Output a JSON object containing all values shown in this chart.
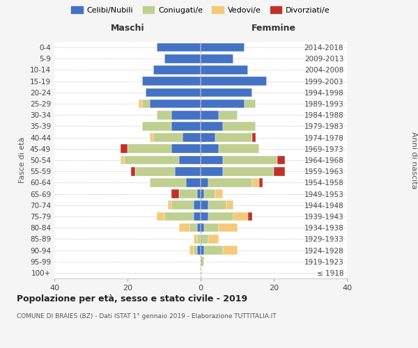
{
  "age_groups": [
    "100+",
    "95-99",
    "90-94",
    "85-89",
    "80-84",
    "75-79",
    "70-74",
    "65-69",
    "60-64",
    "55-59",
    "50-54",
    "45-49",
    "40-44",
    "35-39",
    "30-34",
    "25-29",
    "20-24",
    "15-19",
    "10-14",
    "5-9",
    "0-4"
  ],
  "birth_years": [
    "≤ 1918",
    "1919-1923",
    "1924-1928",
    "1929-1933",
    "1934-1938",
    "1939-1943",
    "1944-1948",
    "1949-1953",
    "1954-1958",
    "1959-1963",
    "1964-1968",
    "1969-1973",
    "1974-1978",
    "1979-1983",
    "1984-1988",
    "1989-1993",
    "1994-1998",
    "1999-2003",
    "2004-2008",
    "2009-2013",
    "2014-2018"
  ],
  "males": {
    "celibi": [
      0,
      0,
      1,
      0,
      1,
      2,
      2,
      1,
      4,
      7,
      6,
      8,
      5,
      8,
      8,
      14,
      15,
      16,
      13,
      10,
      12
    ],
    "coniugati": [
      0,
      0,
      1,
      1,
      2,
      8,
      6,
      5,
      10,
      11,
      15,
      12,
      8,
      8,
      4,
      2,
      0,
      0,
      0,
      0,
      0
    ],
    "vedovi": [
      0,
      0,
      1,
      1,
      3,
      2,
      1,
      0,
      0,
      0,
      1,
      0,
      1,
      0,
      0,
      1,
      0,
      0,
      0,
      0,
      0
    ],
    "divorziati": [
      0,
      0,
      0,
      0,
      0,
      0,
      0,
      2,
      0,
      1,
      0,
      2,
      0,
      0,
      0,
      0,
      0,
      0,
      0,
      0,
      0
    ]
  },
  "females": {
    "nubili": [
      0,
      0,
      1,
      0,
      1,
      2,
      2,
      1,
      2,
      6,
      6,
      5,
      4,
      6,
      5,
      12,
      14,
      18,
      13,
      9,
      12
    ],
    "coniugate": [
      0,
      1,
      5,
      2,
      4,
      7,
      5,
      3,
      12,
      14,
      15,
      11,
      10,
      9,
      5,
      3,
      0,
      0,
      0,
      0,
      0
    ],
    "vedove": [
      0,
      0,
      4,
      3,
      5,
      4,
      2,
      2,
      2,
      0,
      0,
      0,
      0,
      0,
      0,
      0,
      0,
      0,
      0,
      0,
      0
    ],
    "divorziate": [
      0,
      0,
      0,
      0,
      0,
      1,
      0,
      0,
      1,
      3,
      2,
      0,
      1,
      0,
      0,
      0,
      0,
      0,
      0,
      0,
      0
    ]
  },
  "colors": {
    "celibi": "#4472C4",
    "coniugati": "#BFCF8F",
    "vedovi": "#F5C97A",
    "divorziati": "#C0312B"
  },
  "title": "Popolazione per età, sesso e stato civile - 2019",
  "subtitle": "COMUNE DI BRAIES (BZ) - Dati ISTAT 1° gennaio 2019 - Elaborazione TUTTITALIA.IT",
  "xlabel_left": "Maschi",
  "xlabel_right": "Femmine",
  "ylabel_left": "Fasce di età",
  "ylabel_right": "Anni di nascita",
  "xlim": 40,
  "bg_color": "#f5f5f5",
  "plot_bg": "#ffffff",
  "legend_labels": [
    "Celibi/Nubili",
    "Coniugati/e",
    "Vedovi/e",
    "Divorziati/e"
  ]
}
